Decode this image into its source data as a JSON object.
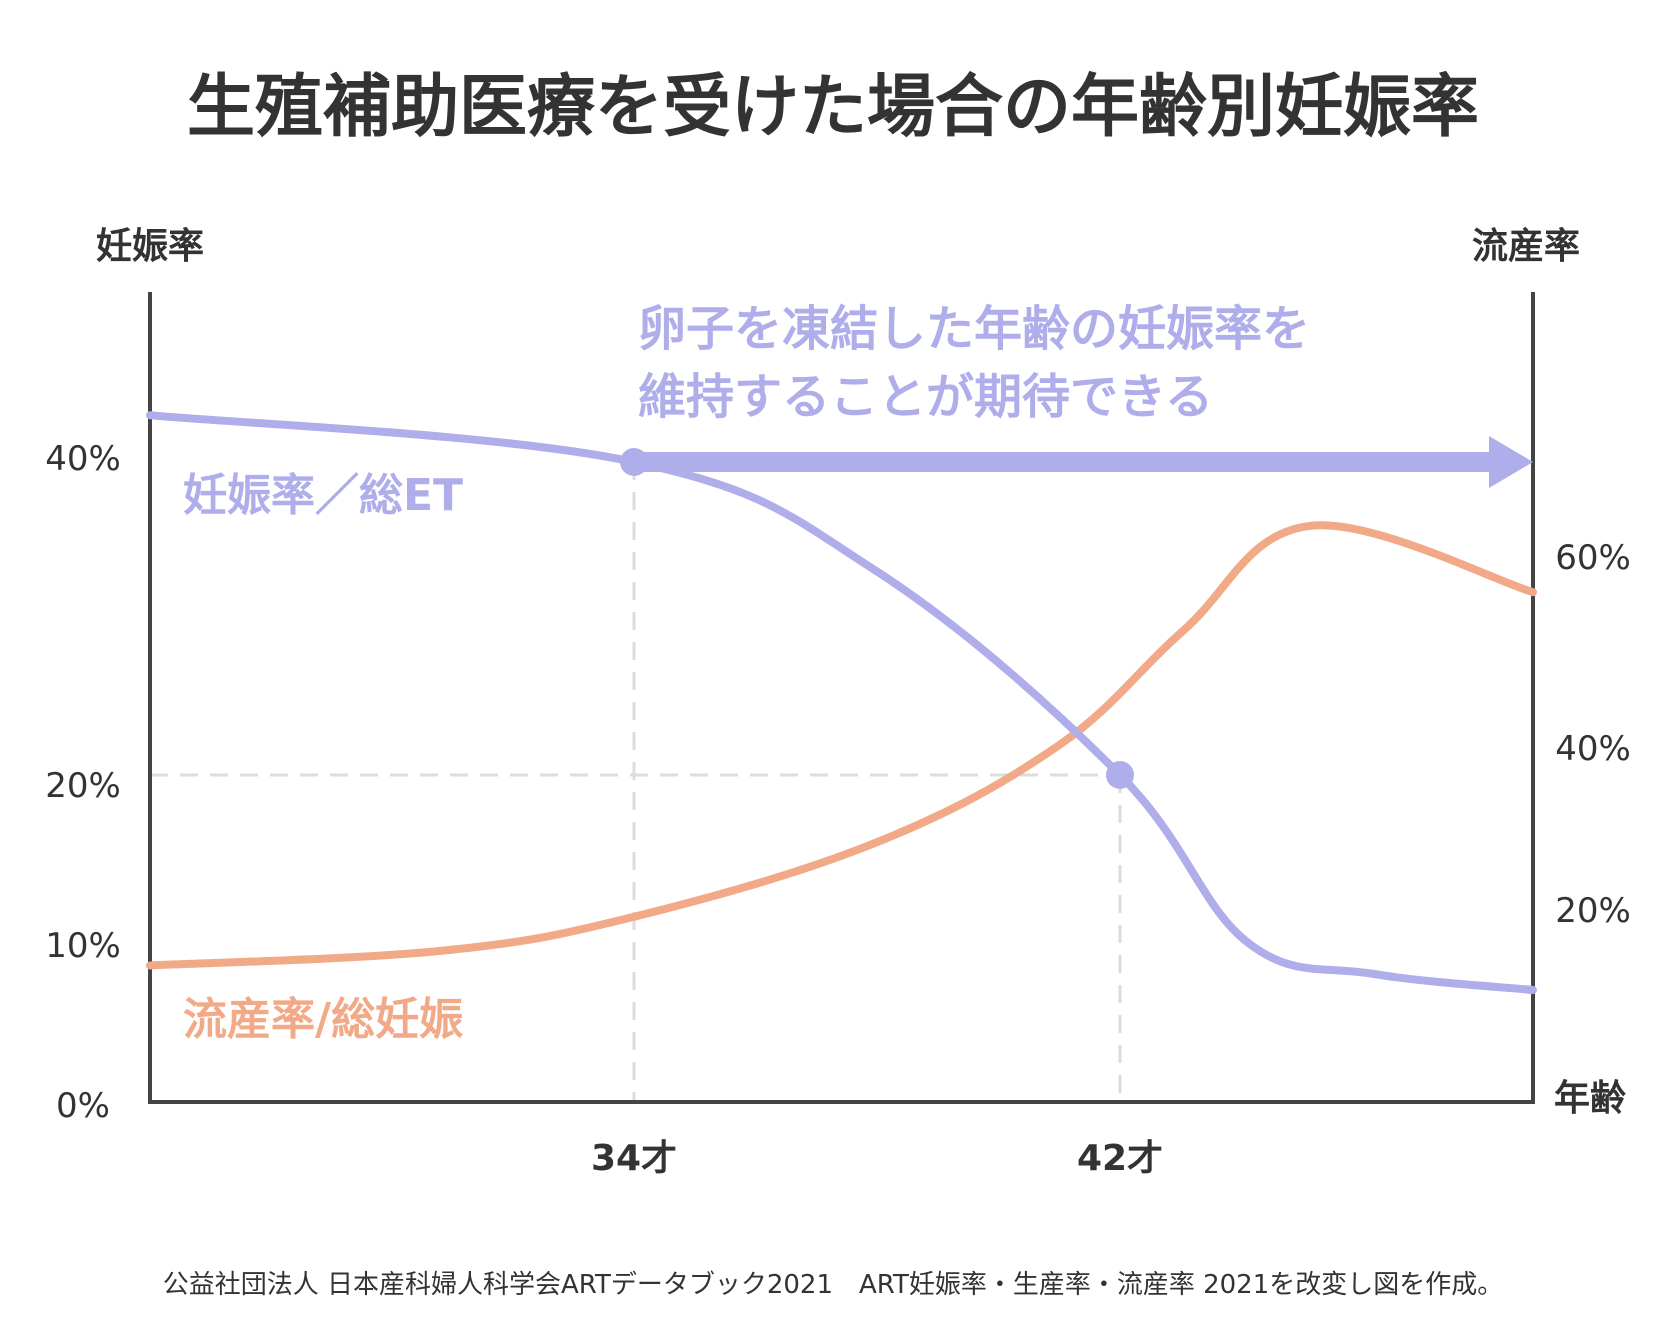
{
  "chart_data": {
    "type": "line",
    "title": "生殖補助医療を受けた場合の年齢別妊娠率",
    "left_axis_title": "妊娠率",
    "right_axis_title": "流産率",
    "x_axis_title": "年齢",
    "left_ticks": [
      "40%",
      "20%",
      "10%",
      "0%"
    ],
    "right_ticks": [
      "60%",
      "40%",
      "20%"
    ],
    "x_ticks": [
      "34才",
      "42才"
    ],
    "annotation_lines": [
      "卵子を凍結した年齢の妊娠率を",
      "維持することが期待できる"
    ],
    "series": [
      {
        "name": "妊娠率／総ET",
        "axis": "left",
        "x": [
          24,
          34,
          38,
          42,
          44,
          46,
          48.5
        ],
        "y": [
          43,
          40,
          33,
          20,
          10,
          8,
          7
        ],
        "markers": [
          {
            "x": 34,
            "y": 40
          },
          {
            "x": 42,
            "y": 20
          }
        ]
      },
      {
        "name": "流産率/総妊娠",
        "axis": "right",
        "x": [
          24,
          30,
          34,
          38,
          41,
          43,
          45,
          48.5
        ],
        "y": [
          14,
          15.5,
          19,
          28,
          40,
          52,
          63,
          56
        ]
      }
    ],
    "arrow": {
      "from_x": 34,
      "to_x": 48.5,
      "y": 40,
      "axis": "left"
    },
    "source": "公益社団法人 日本産科婦人科学会ARTデータブック2021　ART妊娠率・生産率・流産率 2021を改変し図を作成。",
    "colors": {
      "pregnancy": "#afaeeb",
      "miscarriage": "#f2a987",
      "axis": "#444444",
      "guide": "#dddddd",
      "text": "#333333"
    }
  }
}
